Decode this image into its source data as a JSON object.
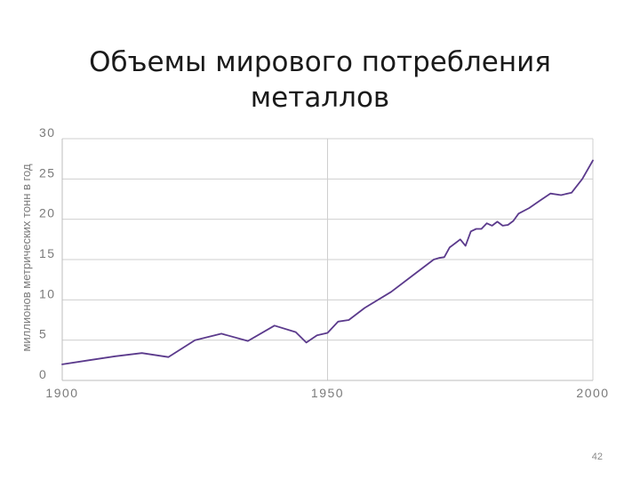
{
  "title_lines": [
    "Объемы мирового потребления",
    "металлов"
  ],
  "page_number": "42",
  "chart_data": {
    "type": "line",
    "ylabel": "миллионов метрических тонн в год",
    "xlabel": "",
    "xlim": [
      1900,
      2000
    ],
    "ylim": [
      0,
      30
    ],
    "x_ticks": [
      "1900",
      "1950",
      "2000"
    ],
    "y_ticks": [
      "0",
      "5",
      "10",
      "15",
      "20",
      "25",
      "30"
    ],
    "grid": true,
    "line_color": "#5b3a8c",
    "grid_color": "#cfcfcf",
    "series": [
      {
        "x": [
          1900,
          1905,
          1910,
          1915,
          1920,
          1925,
          1930,
          1935,
          1940,
          1944,
          1946,
          1948,
          1950,
          1952,
          1954,
          1957,
          1962,
          1966,
          1970,
          1971,
          1972,
          1973,
          1974,
          1975,
          1976,
          1977,
          1978,
          1979,
          1980,
          1981,
          1982,
          1983,
          1984,
          1985,
          1986,
          1988,
          1990,
          1992,
          1994,
          1996,
          1998,
          2000
        ],
        "y": [
          2.0,
          2.5,
          3.0,
          3.4,
          2.9,
          5.0,
          5.8,
          4.9,
          6.8,
          6.0,
          4.7,
          5.6,
          5.9,
          7.3,
          7.5,
          9.0,
          11.0,
          13.0,
          15.0,
          15.2,
          15.3,
          16.5,
          17.0,
          17.5,
          16.7,
          18.5,
          18.8,
          18.8,
          19.5,
          19.2,
          19.7,
          19.2,
          19.3,
          19.8,
          20.7,
          21.4,
          22.3,
          23.2,
          23.0,
          23.3,
          25.0,
          27.3
        ]
      }
    ]
  }
}
